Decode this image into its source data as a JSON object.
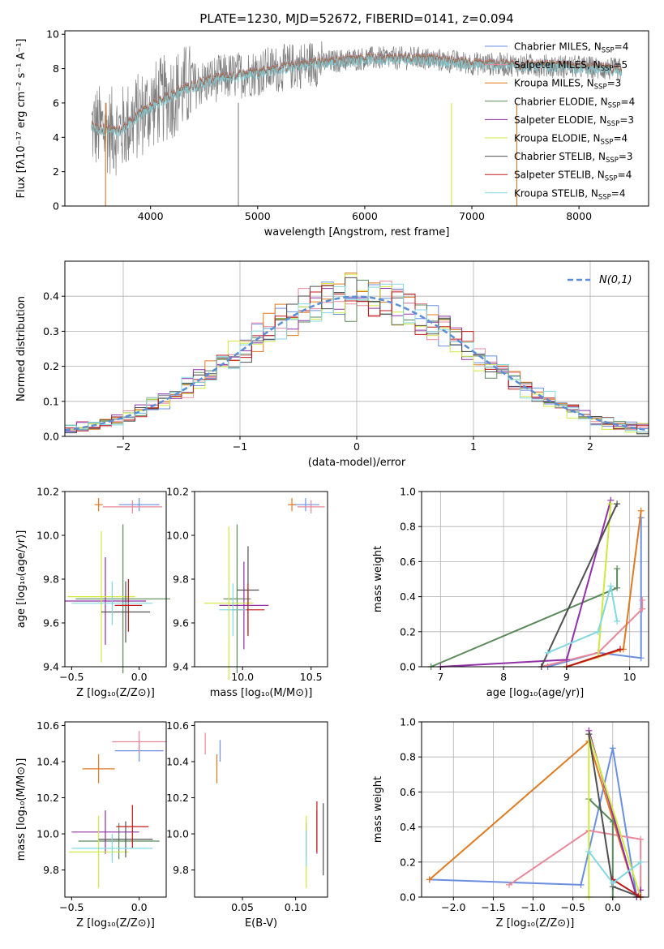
{
  "figure_title": "PLATE=1230, MJD=52672, FIBERID=0141, z=0.094",
  "models": [
    {
      "name": "Chabrier MILES",
      "label": "Chabrier MILES, N",
      "nssp": "4",
      "color": "#6a8fe0"
    },
    {
      "name": "Salpeter MILES",
      "label": "Salpeter MILES, N",
      "nssp": "5",
      "color": "#e8889a"
    },
    {
      "name": "Kroupa MILES",
      "label": "Kroupa MILES, N",
      "nssp": "3",
      "color": "#e07a20"
    },
    {
      "name": "Chabrier ELODIE",
      "label": "Chabrier ELODIE, N",
      "nssp": "4",
      "color": "#5a8a5a"
    },
    {
      "name": "Salpeter ELODIE",
      "label": "Salpeter ELODIE, N",
      "nssp": "3",
      "color": "#9030a8"
    },
    {
      "name": "Kroupa ELODIE",
      "label": "Kroupa ELODIE, N",
      "nssp": "4",
      "color": "#d0e840"
    },
    {
      "name": "Chabrier STELIB",
      "label": "Chabrier STELIB, N",
      "nssp": "3",
      "color": "#505050"
    },
    {
      "name": "Salpeter STELIB",
      "label": "Salpeter STELIB, N",
      "nssp": "4",
      "color": "#c01818"
    },
    {
      "name": "Kroupa STELIB",
      "label": "Kroupa STELIB, N",
      "nssp": "4",
      "color": "#80d8e0"
    }
  ],
  "ssp_subscript": "SSP",
  "chart_data": [
    {
      "id": "spectrum",
      "type": "line",
      "xlabel": "wavelength [Angstrom, rest frame]",
      "ylabel": "Flux [fλ10⁻¹⁷ erg cm⁻² s⁻¹ A⁻¹]",
      "xlim": [
        3200,
        8650
      ],
      "ylim": [
        0,
        10.2
      ],
      "xticks": [
        4000,
        5000,
        6000,
        7000,
        8000
      ],
      "yticks": [
        0,
        2,
        4,
        6,
        8,
        10
      ],
      "data_color": "#808080",
      "continuum": {
        "x": [
          3450,
          3700,
          4000,
          4300,
          4600,
          5000,
          5500,
          6000,
          6500,
          7000,
          7500,
          8000,
          8400
        ],
        "y": [
          4.6,
          4.3,
          5.8,
          6.8,
          7.4,
          7.8,
          8.3,
          8.6,
          8.6,
          8.3,
          8.2,
          8.1,
          7.9
        ]
      }
    },
    {
      "id": "residuals",
      "type": "step-histogram",
      "xlabel": "(data-model)/error",
      "ylabel": "Normed distribution",
      "xlim": [
        -2.5,
        2.5
      ],
      "ylim": [
        0,
        0.5
      ],
      "xticks": [
        -2,
        -1,
        0,
        1,
        2
      ],
      "yticks": [
        0.0,
        0.1,
        0.2,
        0.3,
        0.4
      ],
      "grid": true,
      "legend": "N(0,1)",
      "legend_placement": "top-right",
      "gaussian_color": "#5b8ed6"
    },
    {
      "id": "age_vs_Z",
      "type": "errorbar",
      "xlabel": "Z [log₁₀(Z/Z⊙)]",
      "ylabel": "age  [log₁₀(age/yr)]",
      "xlim": [
        -0.55,
        0.2
      ],
      "ylim": [
        9.4,
        10.2
      ],
      "xticks": [
        -0.5,
        0.0
      ],
      "yticks": [
        9.4,
        9.6,
        9.8,
        10.0,
        10.2
      ],
      "points": [
        {
          "x": 0.0,
          "y": 10.14,
          "xerr": 0.15,
          "yerr": 0.03,
          "m": 0
        },
        {
          "x": -0.05,
          "y": 10.13,
          "xerr": 0.22,
          "yerr": 0.03,
          "m": 1
        },
        {
          "x": -0.3,
          "y": 10.14,
          "xerr": 0.03,
          "yerr": 0.03,
          "m": 2
        },
        {
          "x": -0.12,
          "y": 9.71,
          "xerr": 0.35,
          "yerr": 0.34,
          "m": 3
        },
        {
          "x": -0.25,
          "y": 9.7,
          "xerr": 0.3,
          "yerr": 0.2,
          "m": 4
        },
        {
          "x": -0.28,
          "y": 9.72,
          "xerr": 0.25,
          "yerr": 0.3,
          "m": 5
        },
        {
          "x": -0.1,
          "y": 9.65,
          "xerr": 0.18,
          "yerr": 0.14,
          "m": 6
        },
        {
          "x": -0.08,
          "y": 9.68,
          "xerr": 0.1,
          "yerr": 0.12,
          "m": 7
        },
        {
          "x": -0.2,
          "y": 9.69,
          "xerr": 0.3,
          "yerr": 0.1,
          "m": 8
        }
      ]
    },
    {
      "id": "age_vs_mass",
      "type": "errorbar",
      "xlabel": "mass [log₁₀(M/M⊙)]",
      "ylabel": "",
      "xlim": [
        9.65,
        10.62
      ],
      "ylim": [
        9.4,
        10.2
      ],
      "xticks": [
        10.0,
        10.5
      ],
      "yticks": [
        9.4,
        9.6,
        9.8,
        10.0,
        10.2
      ],
      "points": [
        {
          "x": 10.46,
          "y": 10.14,
          "xerr": 0.1,
          "yerr": 0.03,
          "m": 0
        },
        {
          "x": 10.5,
          "y": 10.13,
          "xerr": 0.1,
          "yerr": 0.03,
          "m": 1
        },
        {
          "x": 10.36,
          "y": 10.14,
          "xerr": 0.03,
          "yerr": 0.03,
          "m": 2
        },
        {
          "x": 9.96,
          "y": 9.71,
          "xerr": 0.1,
          "yerr": 0.34,
          "m": 3
        },
        {
          "x": 10.01,
          "y": 9.68,
          "xerr": 0.18,
          "yerr": 0.2,
          "m": 4
        },
        {
          "x": 9.9,
          "y": 9.69,
          "xerr": 0.18,
          "yerr": 0.35,
          "m": 5
        },
        {
          "x": 10.04,
          "y": 9.75,
          "xerr": 0.08,
          "yerr": 0.2,
          "m": 6
        },
        {
          "x": 10.04,
          "y": 9.66,
          "xerr": 0.12,
          "yerr": 0.12,
          "m": 7
        },
        {
          "x": 9.93,
          "y": 9.66,
          "xerr": 0.1,
          "yerr": 0.12,
          "m": 8
        }
      ]
    },
    {
      "id": "weight_vs_age",
      "type": "line",
      "xlabel": "age  [log₁₀(age/yr)]",
      "ylabel": "mass weight",
      "xlim": [
        6.7,
        10.3
      ],
      "ylim": [
        0,
        1.0
      ],
      "xticks": [
        7,
        8,
        9,
        10
      ],
      "yticks": [
        0.0,
        0.2,
        0.4,
        0.6,
        0.8,
        1.0
      ],
      "grid": true,
      "series": [
        {
          "m": 0,
          "x": [
            8.7,
            9.5,
            10.18,
            10.18
          ],
          "y": [
            0.0,
            0.08,
            0.05,
            0.85
          ]
        },
        {
          "m": 1,
          "x": [
            8.6,
            9.5,
            10.2,
            10.2
          ],
          "y": [
            0.0,
            0.08,
            0.33,
            0.38
          ]
        },
        {
          "m": 2,
          "x": [
            9.0,
            9.9,
            10.18
          ],
          "y": [
            0.0,
            0.1,
            0.89
          ]
        },
        {
          "m": 3,
          "x": [
            6.85,
            9.8,
            9.8
          ],
          "y": [
            0.0,
            0.45,
            0.56
          ]
        },
        {
          "m": 4,
          "x": [
            7.0,
            9.0,
            9.7
          ],
          "y": [
            0.0,
            0.04,
            0.95
          ]
        },
        {
          "m": 5,
          "x": [
            9.0,
            9.5,
            9.7
          ],
          "y": [
            0.0,
            0.06,
            0.93
          ]
        },
        {
          "m": 6,
          "x": [
            8.6,
            9.8
          ],
          "y": [
            0.0,
            0.93
          ]
        },
        {
          "m": 7,
          "x": [
            9.0,
            9.85
          ],
          "y": [
            0.0,
            0.1
          ]
        },
        {
          "m": 8,
          "x": [
            8.7,
            9.5,
            9.7,
            9.8
          ],
          "y": [
            0.08,
            0.2,
            0.46,
            0.26
          ]
        }
      ]
    },
    {
      "id": "mass_vs_Z",
      "type": "errorbar",
      "xlabel": "Z [log₁₀(Z/Z⊙)]",
      "ylabel": "mass [log₁₀(M/M⊙)]",
      "xlim": [
        -0.55,
        0.2
      ],
      "ylim": [
        9.65,
        10.62
      ],
      "xticks": [
        -0.5,
        0.0
      ],
      "yticks": [
        9.8,
        10.0,
        10.2,
        10.4,
        10.6
      ],
      "points": [
        {
          "x": 0.0,
          "y": 10.46,
          "xerr": 0.18,
          "yerr": 0.06,
          "m": 0
        },
        {
          "x": 0.0,
          "y": 10.51,
          "xerr": 0.2,
          "yerr": 0.06,
          "m": 1
        },
        {
          "x": -0.3,
          "y": 10.36,
          "xerr": 0.12,
          "yerr": 0.08,
          "m": 2
        },
        {
          "x": -0.15,
          "y": 9.96,
          "xerr": 0.3,
          "yerr": 0.1,
          "m": 3
        },
        {
          "x": -0.25,
          "y": 10.01,
          "xerr": 0.25,
          "yerr": 0.12,
          "m": 4
        },
        {
          "x": -0.3,
          "y": 9.9,
          "xerr": 0.22,
          "yerr": 0.2,
          "m": 5
        },
        {
          "x": -0.1,
          "y": 9.97,
          "xerr": 0.2,
          "yerr": 0.1,
          "m": 6
        },
        {
          "x": -0.05,
          "y": 10.04,
          "xerr": 0.12,
          "yerr": 0.12,
          "m": 7
        },
        {
          "x": -0.2,
          "y": 9.92,
          "xerr": 0.3,
          "yerr": 0.08,
          "m": 8
        }
      ]
    },
    {
      "id": "mass_vs_EBV",
      "type": "errorbar",
      "xlabel": "E(B-V)",
      "ylabel": "",
      "xlim": [
        0.005,
        0.13
      ],
      "ylim": [
        9.65,
        10.62
      ],
      "xticks": [
        0.05,
        0.1
      ],
      "yticks": [
        9.8,
        10.0,
        10.2,
        10.4,
        10.6
      ],
      "points": [
        {
          "x": 0.029,
          "y": 10.46,
          "xerr": 0.0,
          "yerr": 0.06,
          "m": 0
        },
        {
          "x": 0.015,
          "y": 10.5,
          "xerr": 0.0,
          "yerr": 0.06,
          "m": 1
        },
        {
          "x": 0.026,
          "y": 10.36,
          "xerr": 0.0,
          "yerr": 0.08,
          "m": 2
        },
        {
          "x": 0.11,
          "y": 9.96,
          "xerr": 0.0,
          "yerr": 0.1,
          "m": 3
        },
        {
          "x": 0.12,
          "y": 10.01,
          "xerr": 0.0,
          "yerr": 0.12,
          "m": 4
        },
        {
          "x": 0.11,
          "y": 9.9,
          "xerr": 0.0,
          "yerr": 0.2,
          "m": 5
        },
        {
          "x": 0.126,
          "y": 9.97,
          "xerr": 0.0,
          "yerr": 0.2,
          "m": 6
        },
        {
          "x": 0.12,
          "y": 10.04,
          "xerr": 0.0,
          "yerr": 0.14,
          "m": 7
        },
        {
          "x": 0.11,
          "y": 9.92,
          "xerr": 0.0,
          "yerr": 0.1,
          "m": 8
        }
      ]
    },
    {
      "id": "weight_vs_Z",
      "type": "line",
      "xlabel": "Z [log₁₀(Z/Z⊙)]",
      "ylabel": "mass weight",
      "xlim": [
        -2.4,
        0.45
      ],
      "ylim": [
        0,
        1.0
      ],
      "xticks": [
        -2.0,
        -1.5,
        -1.0,
        -0.5,
        0.0
      ],
      "yticks": [
        0.0,
        0.2,
        0.4,
        0.6,
        0.8,
        1.0
      ],
      "grid": true,
      "series": [
        {
          "m": 0,
          "x": [
            -2.3,
            -0.4,
            0.0,
            0.3
          ],
          "y": [
            0.1,
            0.07,
            0.85,
            0.0
          ]
        },
        {
          "m": 1,
          "x": [
            -1.3,
            -0.3,
            0.35,
            0.35
          ],
          "y": [
            0.07,
            0.38,
            0.33,
            0.0
          ]
        },
        {
          "m": 2,
          "x": [
            -2.3,
            -0.3,
            0.3
          ],
          "y": [
            0.1,
            0.89,
            0.0
          ]
        },
        {
          "m": 3,
          "x": [
            -0.3,
            0.0,
            0.0
          ],
          "y": [
            0.56,
            0.43,
            0.0
          ]
        },
        {
          "m": 4,
          "x": [
            -0.3,
            0.3,
            0.35
          ],
          "y": [
            0.95,
            0.0,
            0.04
          ]
        },
        {
          "m": 5,
          "x": [
            -0.3,
            -0.3,
            0.35
          ],
          "y": [
            0.0,
            0.93,
            0.0
          ]
        },
        {
          "m": 6,
          "x": [
            -0.3,
            0.0,
            0.35
          ],
          "y": [
            0.93,
            0.06,
            0.0
          ]
        },
        {
          "m": 7,
          "x": [
            0.0,
            0.35
          ],
          "y": [
            0.1,
            0.0
          ]
        },
        {
          "m": 8,
          "x": [
            -0.3,
            0.0,
            0.35
          ],
          "y": [
            0.26,
            0.08,
            0.2
          ]
        }
      ]
    }
  ]
}
